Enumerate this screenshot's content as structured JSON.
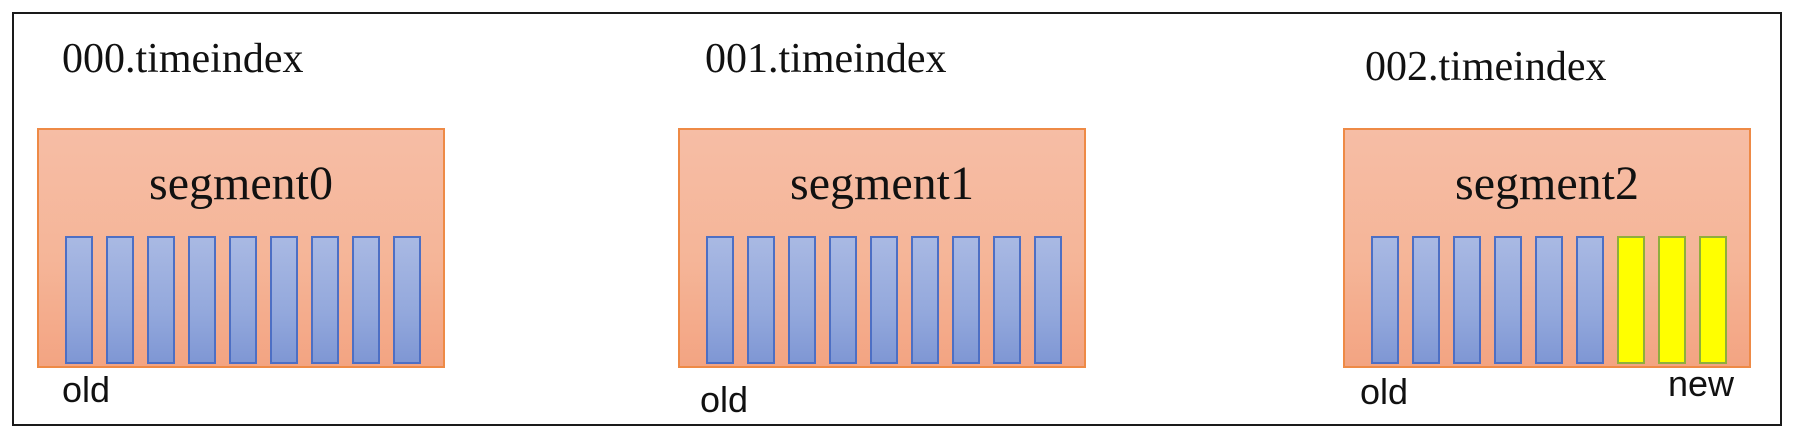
{
  "segments": [
    {
      "index_file": "000.timeindex",
      "name": "segment0",
      "slots": [
        "old",
        "old",
        "old",
        "old",
        "old",
        "old",
        "old",
        "old",
        "old"
      ],
      "left_marker": "old",
      "right_marker": ""
    },
    {
      "index_file": "001.timeindex",
      "name": "segment1",
      "slots": [
        "old",
        "old",
        "old",
        "old",
        "old",
        "old",
        "old",
        "old",
        "old"
      ],
      "left_marker": "old",
      "right_marker": ""
    },
    {
      "index_file": "002.timeindex",
      "name": "segment2",
      "slots": [
        "old",
        "old",
        "old",
        "old",
        "old",
        "old",
        "new",
        "new",
        "new"
      ],
      "left_marker": "old",
      "right_marker": "new"
    }
  ],
  "colors": {
    "segment_fill": "#f5b598",
    "segment_border": "#ee8a46",
    "old_entry_fill": "#93a8dc",
    "old_entry_border": "#4d6fc4",
    "new_entry_fill": "#ffff00"
  }
}
